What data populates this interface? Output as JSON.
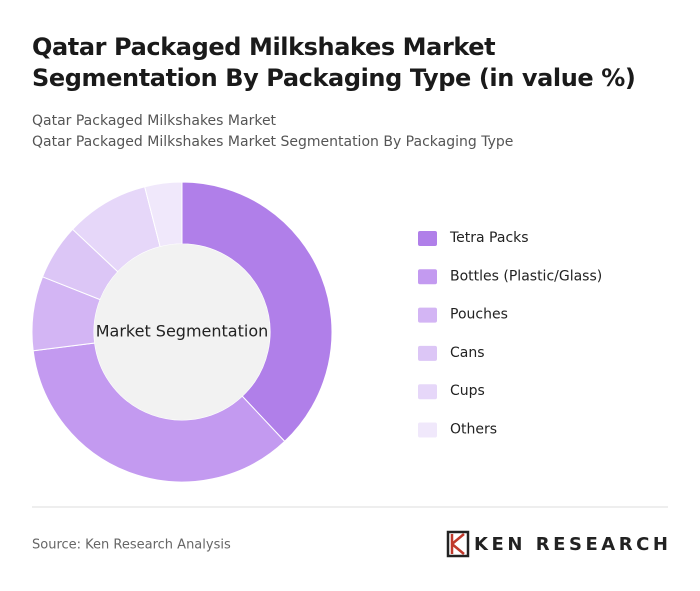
{
  "chart_data": {
    "type": "donut",
    "title": "Qatar Packaged Milkshakes Market Segmentation By Packaging Type (in value %)",
    "subtitle": [
      "Qatar Packaged Milkshakes Market",
      "Qatar Packaged Milkshakes Market Segmentation By Packaging Type"
    ],
    "center_label": "Market Segmentation",
    "categories": [
      "Tetra Packs",
      "Bottles (Plastic/Glass)",
      "Pouches",
      "Cans",
      "Cups",
      "Others"
    ],
    "values": [
      38,
      35,
      8,
      6,
      9,
      4
    ],
    "colors": [
      "#b07fe9",
      "#c39af0",
      "#d3b5f4",
      "#dcc6f6",
      "#e6d7f9",
      "#f0e8fb"
    ],
    "source": "Source: Ken Research Analysis",
    "logo": "KEN RESEARCH"
  }
}
